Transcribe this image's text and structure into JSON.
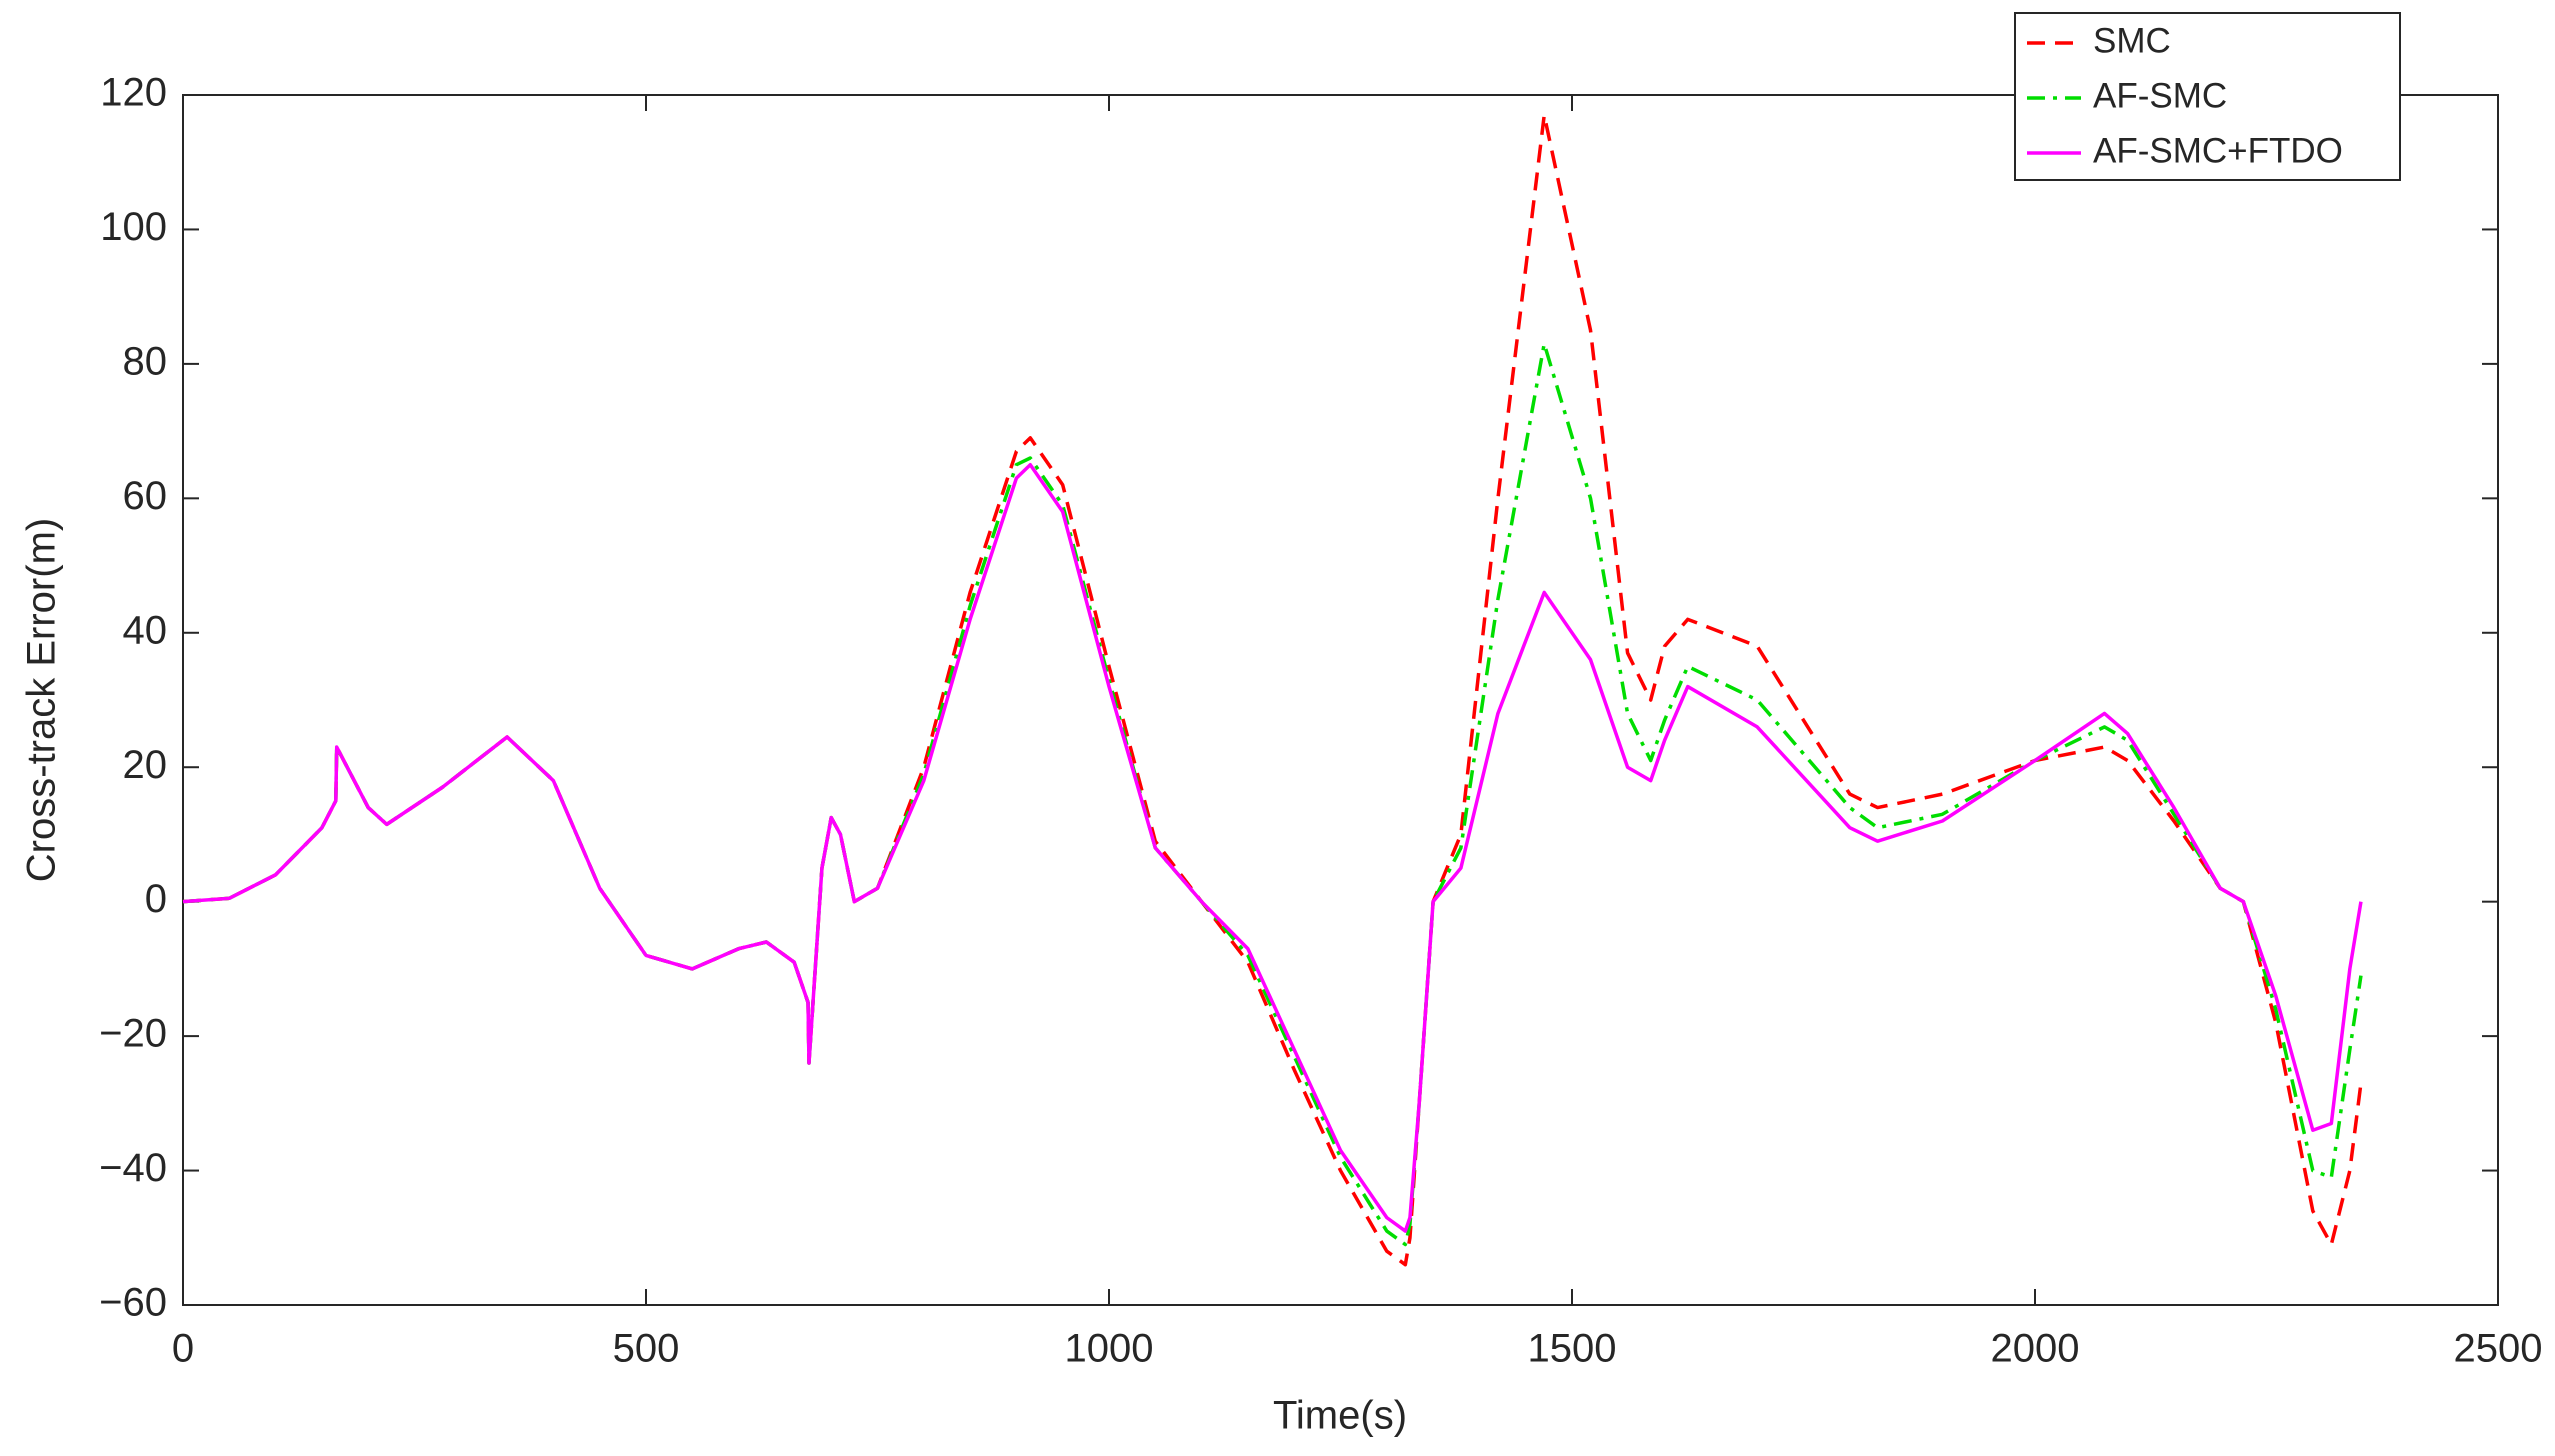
{
  "chart_data": {
    "type": "line",
    "x_label": "Time(s)",
    "y_label": "Cross-track Error(m)",
    "x": [
      0,
      50,
      100,
      150,
      165,
      166,
      200,
      220,
      280,
      350,
      400,
      450,
      500,
      550,
      600,
      630,
      660,
      675,
      676,
      690,
      700,
      710,
      725,
      750,
      800,
      850,
      900,
      915,
      950,
      1000,
      1050,
      1100,
      1150,
      1200,
      1250,
      1300,
      1320,
      1325,
      1335,
      1350,
      1380,
      1420,
      1470,
      1520,
      1560,
      1585,
      1600,
      1625,
      1700,
      1800,
      1830,
      1900,
      2000,
      2075,
      2100,
      2150,
      2200,
      2225,
      2260,
      2300,
      2320,
      2340,
      2352
    ],
    "series": [
      {
        "name": "SMC",
        "color": "#ff0000",
        "line_style": "dashed",
        "values": [
          0,
          0.5,
          4,
          11,
          15,
          23,
          14,
          11.5,
          17,
          24.5,
          18,
          2,
          -8,
          -10,
          -7,
          -6,
          -9,
          -15,
          -24,
          5,
          12.5,
          10,
          0,
          2,
          20,
          46,
          67,
          69,
          62,
          35,
          9,
          0,
          -9,
          -25,
          -40,
          -52,
          -54,
          -50,
          -30,
          0,
          10,
          60,
          117,
          85,
          37,
          30,
          38,
          42,
          38,
          16,
          14,
          16,
          21,
          23,
          21,
          12,
          2,
          0,
          -18,
          -46,
          -51,
          -40,
          -27
        ]
      },
      {
        "name": "AF-SMC",
        "color": "#00dd00",
        "line_style": "dashdot",
        "values": [
          0,
          0.5,
          4,
          11,
          15,
          23,
          14,
          11.5,
          17,
          24.5,
          18,
          2,
          -8,
          -10,
          -7,
          -6,
          -9,
          -15,
          -24,
          5,
          12.5,
          10,
          0,
          2,
          19,
          44,
          65,
          66,
          59,
          33,
          8,
          0,
          -8,
          -23,
          -38,
          -49,
          -51,
          -48,
          -30,
          0,
          8,
          45,
          83,
          60,
          28,
          21,
          27,
          35,
          30,
          14,
          11,
          13,
          21,
          26,
          24,
          13,
          2,
          0,
          -16,
          -40,
          -41,
          -22,
          -11
        ]
      },
      {
        "name": "AF-SMC+FTDO",
        "color": "#ff00ff",
        "line_style": "solid",
        "values": [
          0,
          0.5,
          4,
          11,
          15,
          23,
          14,
          11.5,
          17,
          24.5,
          18,
          2,
          -8,
          -10,
          -7,
          -6,
          -9,
          -15,
          -24,
          5,
          12.5,
          10,
          0,
          2,
          18,
          42,
          63,
          65,
          58,
          32,
          8,
          0,
          -7,
          -22,
          -37,
          -47,
          -49,
          -47,
          -30,
          0,
          5,
          28,
          46,
          36,
          20,
          18,
          24,
          32,
          26,
          11,
          9,
          12,
          21,
          28,
          25,
          14,
          2,
          0,
          -14,
          -34,
          -33,
          -10,
          0
        ]
      }
    ],
    "xlim": [
      0,
      2500
    ],
    "xticks": [
      0,
      500,
      1000,
      1500,
      2000,
      2500
    ],
    "ylim": [
      -60,
      120
    ],
    "yticks": [
      {
        "value": -60,
        "label": "−60"
      },
      {
        "value": -40,
        "label": "−40"
      },
      {
        "value": -20,
        "label": "−20"
      },
      0,
      20,
      40,
      60,
      80,
      100,
      120
    ],
    "grid": false,
    "legend": "upper right"
  }
}
